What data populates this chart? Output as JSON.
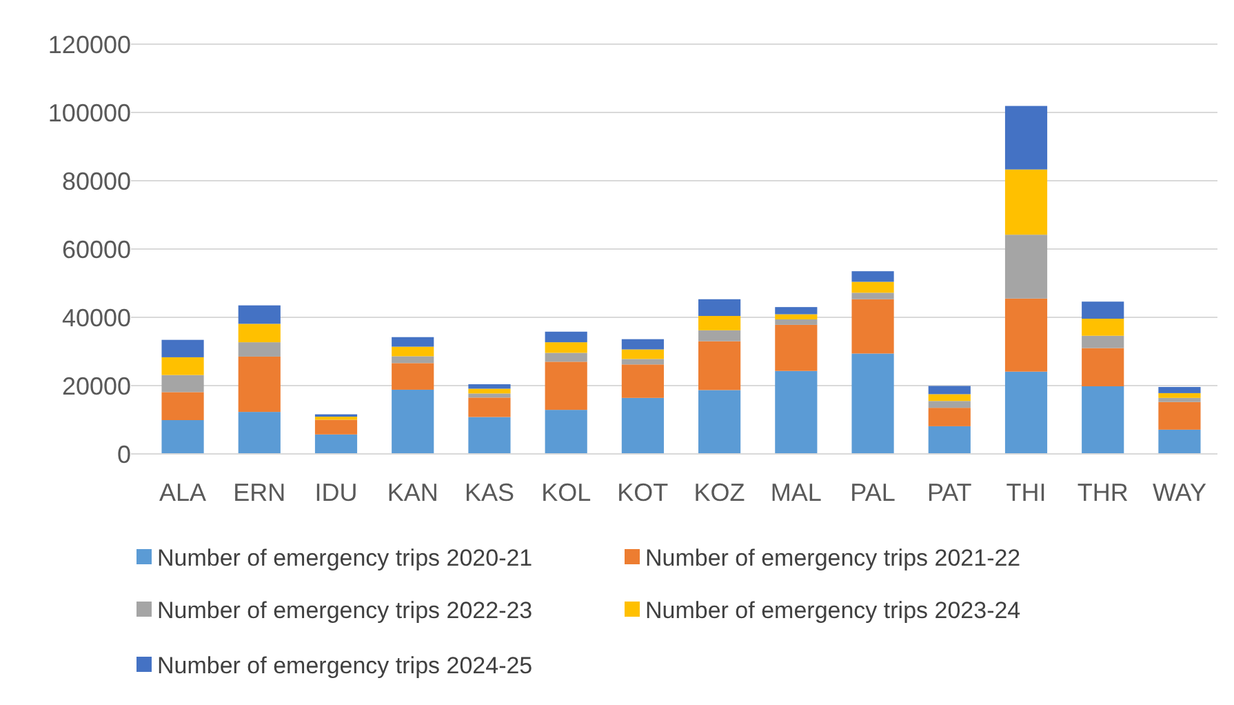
{
  "chart_data": {
    "type": "bar",
    "stacked": true,
    "categories": [
      "ALA",
      "ERN",
      "IDU",
      "KAN",
      "KAS",
      "KOL",
      "KOT",
      "KOZ",
      "MAL",
      "PAL",
      "PAT",
      "THI",
      "THR",
      "WAY"
    ],
    "series": [
      {
        "name": "Number of emergency trips 2020-21",
        "color": "#5b9bd5",
        "values": [
          9900,
          12300,
          5700,
          18800,
          10800,
          12900,
          16400,
          18700,
          24300,
          29400,
          8100,
          24100,
          19800,
          7100
        ]
      },
      {
        "name": "Number of emergency trips 2021-22",
        "color": "#ed7d31",
        "values": [
          8200,
          16200,
          4300,
          7800,
          5700,
          14100,
          9800,
          14300,
          13500,
          15900,
          5400,
          21400,
          11200,
          8100
        ]
      },
      {
        "name": "Number of emergency trips 2022-23",
        "color": "#a5a5a5",
        "values": [
          5000,
          4200,
          null,
          2000,
          1200,
          2600,
          1600,
          3200,
          1600,
          1900,
          2000,
          18700,
          3600,
          1200
        ]
      },
      {
        "name": "Number of emergency trips 2023-24",
        "color": "#ffc000",
        "values": [
          5200,
          5400,
          900,
          2800,
          1400,
          3100,
          2800,
          4200,
          1500,
          3200,
          2000,
          19100,
          5000,
          1400
        ]
      },
      {
        "name": "Number of emergency trips 2024-25",
        "color": "#4472c4",
        "values": [
          5100,
          5400,
          700,
          2800,
          1300,
          3100,
          3000,
          4900,
          2100,
          3100,
          2400,
          18600,
          5000,
          1800
        ]
      }
    ],
    "ylim": [
      0,
      120000
    ],
    "yticks": [
      0,
      20000,
      40000,
      60000,
      80000,
      100000,
      120000
    ],
    "grid": "y",
    "legend": "bottom"
  }
}
